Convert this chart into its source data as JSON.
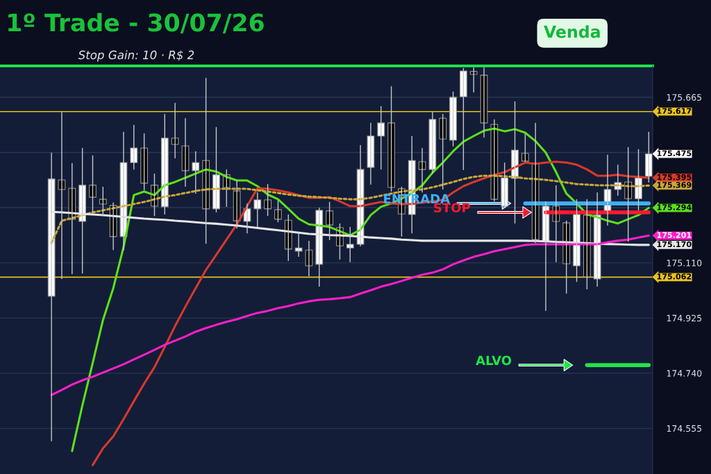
{
  "chart_data": {
    "type": "candlestick",
    "title": "1º Trade - 30/07/26",
    "subtitle": "Stop Gain: 10 · R$ 2",
    "categories": [
      null,
      null,
      null,
      null,
      null,
      null,
      null,
      null,
      null,
      null,
      null,
      null,
      null,
      null,
      null,
      null,
      null,
      null,
      null,
      null,
      null,
      null,
      null,
      null,
      null,
      null,
      null,
      null,
      null,
      null,
      null,
      null,
      null,
      null,
      null,
      null,
      null,
      null,
      null,
      null,
      null,
      null,
      null,
      null,
      null,
      null,
      null,
      null,
      null,
      null,
      null,
      null,
      null,
      null,
      null,
      null,
      null,
      null,
      null
    ],
    "ohlc": [
      [
        174.998,
        175.479,
        174.512,
        175.391
      ],
      [
        175.388,
        175.616,
        175.056,
        175.356
      ],
      [
        175.36,
        175.444,
        175.072,
        175.256
      ],
      [
        175.249,
        175.495,
        175.074,
        175.37
      ],
      [
        175.37,
        175.47,
        175.279,
        175.33
      ],
      [
        175.323,
        175.365,
        175.267,
        175.307
      ],
      [
        175.302,
        175.312,
        175.153,
        175.198
      ],
      [
        175.198,
        175.549,
        175.151,
        175.446
      ],
      [
        175.446,
        175.572,
        175.423,
        175.495
      ],
      [
        175.495,
        175.544,
        175.353,
        175.377
      ],
      [
        175.37,
        175.409,
        175.267,
        175.3
      ],
      [
        175.298,
        175.609,
        175.272,
        175.528
      ],
      [
        175.528,
        175.646,
        175.46,
        175.507
      ],
      [
        175.502,
        175.595,
        175.365,
        175.419
      ],
      [
        175.419,
        175.484,
        175.342,
        175.446
      ],
      [
        175.453,
        175.73,
        175.174,
        175.291
      ],
      [
        175.291,
        175.565,
        175.279,
        175.405
      ],
      [
        175.405,
        175.423,
        175.298,
        175.363
      ],
      [
        175.351,
        175.386,
        175.225,
        175.251
      ],
      [
        175.249,
        175.309,
        175.209,
        175.291
      ],
      [
        175.291,
        175.346,
        175.23,
        175.321
      ],
      [
        175.321,
        175.374,
        175.267,
        175.291
      ],
      [
        175.288,
        175.319,
        175.246,
        175.256
      ],
      [
        175.253,
        175.272,
        175.116,
        175.156
      ],
      [
        175.149,
        175.209,
        175.13,
        175.16
      ],
      [
        175.153,
        175.184,
        175.065,
        175.1
      ],
      [
        175.105,
        175.295,
        175.03,
        175.286
      ],
      [
        175.284,
        175.314,
        175.186,
        175.237
      ],
      [
        175.228,
        175.242,
        175.121,
        175.167
      ],
      [
        175.16,
        175.23,
        175.112,
        175.172
      ],
      [
        175.172,
        175.505,
        175.165,
        175.423
      ],
      [
        175.43,
        175.579,
        175.372,
        175.535
      ],
      [
        175.535,
        175.635,
        175.423,
        175.579
      ],
      [
        175.579,
        175.702,
        175.349,
        175.363
      ],
      [
        175.358,
        175.365,
        175.198,
        175.274
      ],
      [
        175.272,
        175.535,
        175.209,
        175.453
      ],
      [
        175.449,
        175.495,
        175.346,
        175.423
      ],
      [
        175.423,
        175.616,
        175.409,
        175.591
      ],
      [
        175.595,
        175.609,
        175.356,
        175.525
      ],
      [
        175.521,
        175.684,
        175.5,
        175.665
      ],
      [
        175.667,
        175.763,
        175.421,
        175.753
      ],
      [
        175.751,
        175.765,
        175.681,
        175.742
      ],
      [
        175.739,
        175.765,
        175.53,
        175.579
      ],
      [
        175.574,
        175.591,
        175.316,
        175.323
      ],
      [
        175.3,
        175.446,
        175.293,
        175.395
      ],
      [
        175.393,
        175.651,
        175.242,
        175.488
      ],
      [
        175.477,
        175.542,
        175.449,
        175.451
      ],
      [
        175.442,
        175.579,
        175.177,
        175.188
      ],
      [
        175.181,
        175.316,
        174.949,
        175.3
      ],
      [
        175.3,
        175.37,
        175.112,
        175.249
      ],
      [
        175.244,
        175.251,
        175.007,
        175.107
      ],
      [
        175.1,
        175.323,
        175.046,
        175.272
      ],
      [
        175.27,
        175.323,
        175.021,
        175.063
      ],
      [
        175.056,
        175.346,
        175.03,
        175.27
      ],
      [
        175.281,
        175.472,
        175.235,
        175.356
      ],
      [
        175.356,
        175.439,
        175.335,
        175.379
      ],
      [
        175.381,
        175.498,
        175.181,
        175.325
      ],
      [
        175.325,
        175.491,
        175.286,
        175.395
      ],
      [
        175.4,
        175.549,
        175.379,
        175.475
      ]
    ],
    "value_labels": [
      null,
      null,
      null,
      null,
      null,
      null,
      null,
      null,
      null,
      null,
      null,
      null,
      null,
      null,
      null,
      null,
      null,
      null,
      null,
      null,
      null,
      null,
      null,
      null,
      null,
      null,
      null,
      null,
      null,
      null,
      null,
      null,
      null,
      null,
      null,
      null,
      null,
      null,
      null,
      null,
      null,
      null,
      null,
      null,
      null,
      null,
      null,
      null,
      null,
      null,
      null,
      null,
      null,
      null,
      null,
      null,
      null,
      null,
      "175.475"
    ],
    "series": [
      {
        "type": "line",
        "color": "#5ce01a",
        "values": [
          null,
          null,
          174.479,
          174.632,
          174.774,
          174.918,
          175.025,
          175.163,
          175.337,
          175.349,
          175.337,
          175.37,
          175.381,
          175.395,
          175.409,
          175.423,
          175.416,
          175.398,
          175.386,
          175.386,
          175.367,
          175.339,
          175.323,
          175.291,
          175.258,
          175.239,
          175.235,
          175.23,
          175.216,
          175.202,
          175.221,
          175.27,
          175.298,
          175.309,
          175.325,
          175.344,
          175.37,
          175.412,
          175.446,
          175.484,
          175.516,
          175.535,
          175.553,
          175.56,
          175.551,
          175.558,
          175.546,
          175.518,
          175.479,
          175.414,
          175.342,
          175.309,
          175.272,
          175.263,
          175.251,
          175.242,
          175.256,
          175.27,
          175.294
        ],
        "value_labels": [
          null,
          null,
          null,
          null,
          null,
          null,
          null,
          null,
          null,
          null,
          null,
          null,
          null,
          null,
          null,
          null,
          null,
          null,
          null,
          null,
          null,
          null,
          null,
          null,
          null,
          null,
          null,
          null,
          null,
          null,
          null,
          null,
          null,
          null,
          null,
          null,
          null,
          null,
          null,
          null,
          null,
          null,
          null,
          null,
          null,
          null,
          null,
          null,
          null,
          null,
          null,
          null,
          null,
          null,
          null,
          null,
          null,
          null,
          "175.294"
        ]
      },
      {
        "type": "line",
        "color": "#d8392b",
        "values": [
          null,
          null,
          null,
          null,
          174.432,
          174.488,
          174.528,
          174.586,
          174.646,
          174.705,
          174.76,
          174.828,
          174.898,
          174.963,
          175.025,
          175.086,
          175.137,
          175.188,
          175.239,
          175.3,
          175.36,
          175.358,
          175.353,
          175.346,
          175.337,
          175.328,
          175.328,
          175.33,
          175.316,
          175.3,
          175.3,
          175.307,
          175.314,
          175.309,
          175.307,
          175.307,
          175.312,
          175.316,
          175.321,
          175.346,
          175.367,
          175.381,
          175.393,
          175.405,
          175.414,
          175.43,
          175.446,
          175.442,
          175.446,
          175.449,
          175.446,
          175.439,
          175.423,
          175.402,
          175.402,
          175.405,
          175.4,
          175.398,
          175.395
        ],
        "value_labels": [
          null,
          null,
          null,
          null,
          null,
          null,
          null,
          null,
          null,
          null,
          null,
          null,
          null,
          null,
          null,
          null,
          null,
          null,
          null,
          null,
          null,
          null,
          null,
          null,
          null,
          null,
          null,
          null,
          null,
          null,
          null,
          null,
          null,
          null,
          null,
          null,
          null,
          null,
          null,
          null,
          null,
          null,
          null,
          null,
          null,
          null,
          null,
          null,
          null,
          null,
          null,
          null,
          null,
          null,
          null,
          null,
          null,
          null,
          "175.395"
        ]
      },
      {
        "type": "line",
        "color": "#c9a63a",
        "line_style": "dotted",
        "values": [
          175.177,
          175.251,
          175.26,
          175.27,
          175.279,
          175.286,
          175.293,
          175.3,
          175.307,
          175.314,
          175.323,
          175.332,
          175.337,
          175.344,
          175.351,
          175.356,
          175.358,
          175.358,
          175.358,
          175.358,
          175.353,
          175.349,
          175.344,
          175.339,
          175.335,
          175.332,
          175.33,
          175.328,
          175.325,
          175.323,
          175.323,
          175.328,
          175.335,
          175.342,
          175.349,
          175.353,
          175.356,
          175.363,
          175.372,
          175.381,
          175.391,
          175.398,
          175.402,
          175.402,
          175.4,
          175.398,
          175.393,
          175.391,
          175.388,
          175.384,
          175.379,
          175.374,
          175.372,
          175.37,
          175.37,
          175.37,
          175.367,
          175.367,
          175.369
        ],
        "value_labels": [
          null,
          null,
          null,
          null,
          null,
          null,
          null,
          null,
          null,
          null,
          null,
          null,
          null,
          null,
          null,
          null,
          null,
          null,
          null,
          null,
          null,
          null,
          null,
          null,
          null,
          null,
          null,
          null,
          null,
          null,
          null,
          null,
          null,
          null,
          null,
          null,
          null,
          null,
          null,
          null,
          null,
          null,
          null,
          null,
          null,
          null,
          null,
          null,
          null,
          null,
          null,
          null,
          null,
          null,
          null,
          null,
          null,
          null,
          "175.369"
        ]
      },
      {
        "type": "line",
        "color": "#e6e6e6",
        "values": [
          175.281,
          175.279,
          175.277,
          175.274,
          175.272,
          175.27,
          175.267,
          175.264,
          175.261,
          175.258,
          175.256,
          175.254,
          175.251,
          175.249,
          175.246,
          175.243,
          175.241,
          175.238,
          175.235,
          175.231,
          175.227,
          175.223,
          175.219,
          175.215,
          175.211,
          175.207,
          175.205,
          175.203,
          175.202,
          175.2,
          175.198,
          175.195,
          175.193,
          175.191,
          175.188,
          175.186,
          175.184,
          175.184,
          175.184,
          175.184,
          175.184,
          175.184,
          175.184,
          175.184,
          175.184,
          175.184,
          175.184,
          175.183,
          175.182,
          175.18,
          175.179,
          175.177,
          175.176,
          175.174,
          175.173,
          175.172,
          175.171,
          175.17,
          175.17
        ],
        "value_labels": [
          null,
          null,
          null,
          null,
          null,
          null,
          null,
          null,
          null,
          null,
          null,
          null,
          null,
          null,
          null,
          null,
          null,
          null,
          null,
          null,
          null,
          null,
          null,
          null,
          null,
          null,
          null,
          null,
          null,
          null,
          null,
          null,
          null,
          null,
          null,
          null,
          null,
          null,
          null,
          null,
          null,
          null,
          null,
          null,
          null,
          null,
          null,
          null,
          null,
          null,
          null,
          null,
          null,
          null,
          null,
          null,
          null,
          null,
          "175.170"
        ]
      },
      {
        "type": "line",
        "color": "#ff1fc8",
        "values": [
          174.667,
          174.684,
          174.702,
          174.716,
          174.728,
          174.742,
          174.756,
          174.77,
          174.786,
          174.802,
          174.818,
          174.835,
          174.849,
          174.863,
          174.879,
          174.891,
          174.902,
          174.912,
          174.921,
          174.932,
          174.942,
          174.949,
          174.958,
          174.965,
          174.974,
          174.981,
          174.986,
          174.988,
          174.991,
          174.995,
          175.007,
          175.018,
          175.03,
          175.039,
          175.049,
          175.06,
          175.07,
          175.077,
          175.088,
          175.105,
          175.118,
          175.13,
          175.139,
          175.149,
          175.156,
          175.163,
          175.17,
          175.172,
          175.172,
          175.172,
          175.172,
          175.172,
          175.172,
          175.172,
          175.179,
          175.184,
          175.188,
          175.195,
          175.201
        ],
        "value_labels": [
          null,
          null,
          null,
          null,
          null,
          null,
          null,
          null,
          null,
          null,
          null,
          null,
          null,
          null,
          null,
          null,
          null,
          null,
          null,
          null,
          null,
          null,
          null,
          null,
          null,
          null,
          null,
          null,
          null,
          null,
          null,
          null,
          null,
          null,
          null,
          null,
          null,
          null,
          null,
          null,
          null,
          null,
          null,
          null,
          null,
          null,
          null,
          null,
          null,
          null,
          null,
          null,
          null,
          null,
          null,
          null,
          null,
          null,
          "175.201"
        ]
      },
      {
        "type": "line",
        "name": "ENTRADA",
        "color": "#3fb0f5",
        "values": [
          null,
          null,
          null,
          null,
          null,
          null,
          null,
          null,
          null,
          null,
          null,
          null,
          null,
          null,
          null,
          null,
          null,
          null,
          null,
          null,
          null,
          null,
          null,
          null,
          null,
          null,
          null,
          null,
          null,
          null,
          null,
          null,
          null,
          null,
          null,
          null,
          null,
          null,
          null,
          null,
          null,
          null,
          null,
          null,
          null,
          null,
          175.309,
          175.309,
          175.309,
          175.309,
          175.309,
          175.309,
          175.309,
          175.309,
          175.309,
          175.309,
          175.309,
          175.309,
          175.309
        ]
      },
      {
        "type": "line",
        "name": "STOP",
        "color": "#ff1a2e",
        "values": [
          null,
          null,
          null,
          null,
          null,
          null,
          null,
          null,
          null,
          null,
          null,
          null,
          null,
          null,
          null,
          null,
          null,
          null,
          null,
          null,
          null,
          null,
          null,
          null,
          null,
          null,
          null,
          null,
          null,
          null,
          null,
          null,
          null,
          null,
          null,
          null,
          null,
          null,
          null,
          null,
          null,
          null,
          null,
          null,
          null,
          null,
          null,
          null,
          175.279,
          175.279,
          175.279,
          175.279,
          175.279,
          175.279,
          175.279,
          175.279,
          175.279,
          175.279,
          175.279
        ]
      },
      {
        "type": "line",
        "name": "ALVO",
        "color": "#22e34a",
        "values": [
          null,
          null,
          null,
          null,
          null,
          null,
          null,
          null,
          null,
          null,
          null,
          null,
          null,
          null,
          null,
          null,
          null,
          null,
          null,
          null,
          null,
          null,
          null,
          null,
          null,
          null,
          null,
          null,
          null,
          null,
          null,
          null,
          null,
          null,
          null,
          null,
          null,
          null,
          null,
          null,
          null,
          null,
          null,
          null,
          null,
          null,
          null,
          null,
          null,
          null,
          null,
          null,
          174.767,
          174.767,
          174.767,
          174.767,
          174.767,
          174.767,
          174.767
        ]
      }
    ],
    "ref_lines": [
      {
        "axis": "y",
        "value": 175.617,
        "label": "175.617",
        "color": "#e8c21e"
      },
      {
        "axis": "y",
        "value": 175.062,
        "label": "175.062",
        "color": "#e8c21e"
      },
      {
        "axis": "y",
        "value": 175.77,
        "color": "#1fe04a"
      }
    ],
    "annotations": [
      "Venda"
    ],
    "ylim": [
      174.402,
      175.77
    ],
    "yticks": [
      174.555,
      {
        "value": 174.74,
        "label": "174.740"
      },
      174.925,
      {
        "value": 175.11,
        "label": "175.110"
      },
      {
        "value": 175.295,
        "label": null
      },
      {
        "value": 175.48,
        "label": null
      },
      175.665
    ],
    "grid": "y",
    "tick_labels": "y",
    "legend": "right"
  }
}
